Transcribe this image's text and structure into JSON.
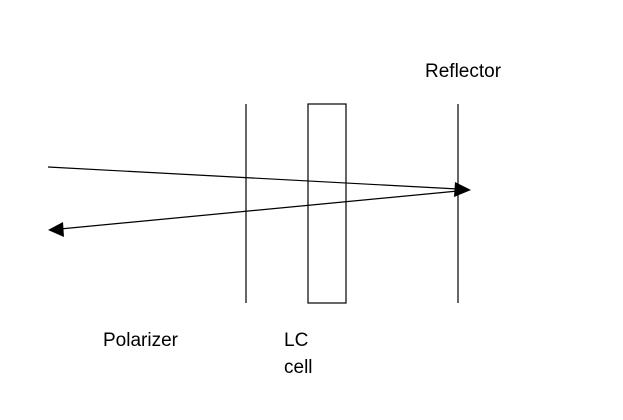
{
  "labels": {
    "reflector": "Reflector",
    "polarizer": "Polarizer",
    "lc_line1": "LC",
    "lc_line2": "cell"
  },
  "colors": {
    "line": "#000000",
    "background": "#ffffff"
  }
}
